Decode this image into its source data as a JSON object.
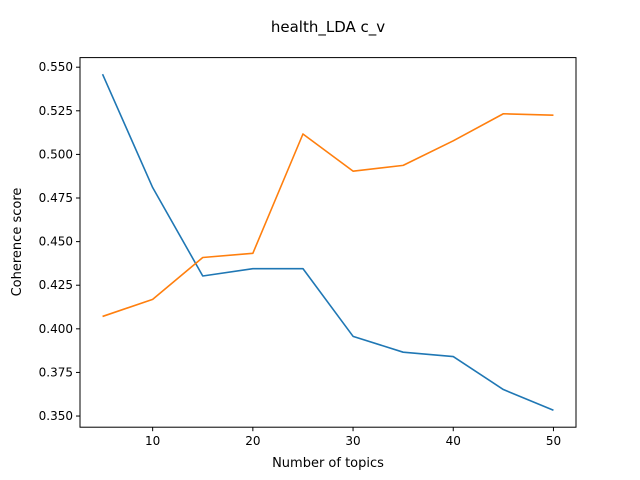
{
  "chart_data": {
    "type": "line",
    "title": "health_LDA c_v",
    "xlabel": "Number of topics",
    "ylabel": "Coherence score",
    "x": [
      5,
      10,
      15,
      20,
      25,
      30,
      35,
      40,
      45,
      50
    ],
    "xlim": [
      2.75,
      52.25
    ],
    "ylim": [
      0.3436,
      0.5555
    ],
    "xticks": [
      10,
      20,
      30,
      40,
      50
    ],
    "xtick_labels": [
      "10",
      "20",
      "30",
      "40",
      "50"
    ],
    "yticks": [
      0.35,
      0.375,
      0.4,
      0.425,
      0.45,
      0.475,
      0.5,
      0.525,
      0.55
    ],
    "ytick_labels": [
      "0.350",
      "0.375",
      "0.400",
      "0.425",
      "0.450",
      "0.475",
      "0.500",
      "0.525",
      "0.550"
    ],
    "grid": false,
    "series": [
      {
        "color": "#1f77b4",
        "values": [
          0.546,
          0.481,
          0.4303,
          0.4345,
          0.4345,
          0.3957,
          0.3866,
          0.3841,
          0.3652,
          0.3533
        ]
      },
      {
        "color": "#ff7f0e",
        "values": [
          0.4071,
          0.4169,
          0.4409,
          0.4433,
          0.5117,
          0.4904,
          0.4937,
          0.5078,
          0.5233,
          0.5225
        ]
      }
    ]
  }
}
